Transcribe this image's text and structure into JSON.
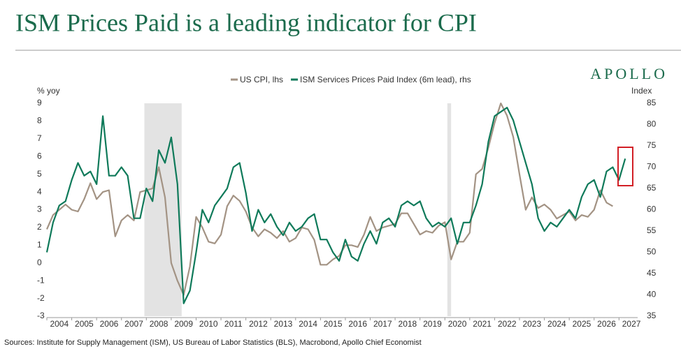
{
  "header": {
    "title": "ISM Prices Paid is a leading indicator for CPI",
    "brand": "APOLLO"
  },
  "chart_data": {
    "type": "line",
    "y_label": "% yoy",
    "y2_label": "Index",
    "source": "Sources: Institute for Supply Management (ISM), US Bureau of Labor Statistics (BLS), Macrobond, Apollo Chief Economist",
    "x": [
      2004,
      2004.25,
      2004.5,
      2004.75,
      2005,
      2005.25,
      2005.5,
      2005.75,
      2006,
      2006.25,
      2006.5,
      2006.75,
      2007,
      2007.25,
      2007.5,
      2007.75,
      2008,
      2008.25,
      2008.5,
      2008.75,
      2009,
      2009.25,
      2009.5,
      2009.75,
      2010,
      2010.25,
      2010.5,
      2010.75,
      2011,
      2011.25,
      2011.5,
      2011.75,
      2012,
      2012.25,
      2012.5,
      2012.75,
      2013,
      2013.25,
      2013.5,
      2013.75,
      2014,
      2014.25,
      2014.5,
      2014.75,
      2015,
      2015.25,
      2015.5,
      2015.75,
      2016,
      2016.25,
      2016.5,
      2016.75,
      2017,
      2017.25,
      2017.5,
      2017.75,
      2018,
      2018.25,
      2018.5,
      2018.75,
      2019,
      2019.25,
      2019.5,
      2019.75,
      2020,
      2020.25,
      2020.5,
      2020.75,
      2021,
      2021.25,
      2021.5,
      2021.75,
      2022,
      2022.25,
      2022.5,
      2022.75,
      2023,
      2023.25,
      2023.5,
      2023.75,
      2024,
      2024.25,
      2024.5,
      2024.75,
      2025,
      2025.25,
      2025.5,
      2025.75,
      2026,
      2026.25,
      2026.5,
      2026.75,
      2027,
      2027.25
    ],
    "series": [
      {
        "name": "US CPI, lhs",
        "color": "#a39384",
        "axis": "y",
        "values": [
          1.9,
          2.7,
          3.0,
          3.3,
          3.0,
          2.9,
          3.6,
          4.5,
          3.6,
          4.0,
          4.1,
          1.5,
          2.4,
          2.7,
          2.4,
          4.0,
          4.1,
          4.2,
          5.4,
          3.7,
          0.0,
          -1.0,
          -1.8,
          -0.2,
          2.6,
          2.0,
          1.2,
          1.1,
          1.6,
          3.2,
          3.8,
          3.5,
          2.9,
          2.0,
          1.5,
          1.9,
          1.7,
          1.4,
          1.8,
          1.2,
          1.4,
          2.0,
          1.9,
          1.3,
          -0.1,
          -0.1,
          0.2,
          0.4,
          1.0,
          1.0,
          0.9,
          1.6,
          2.6,
          1.8,
          2.0,
          2.1,
          2.2,
          2.8,
          2.8,
          2.2,
          1.6,
          1.8,
          1.7,
          2.1,
          2.3,
          0.2,
          1.2,
          1.2,
          1.7,
          5.0,
          5.3,
          6.5,
          7.9,
          9.0,
          8.3,
          7.1,
          5.0,
          3.0,
          3.7,
          3.1,
          3.3,
          3.0,
          2.5,
          2.7,
          2.9,
          2.4,
          2.7,
          2.6,
          3.0,
          4.1,
          3.4,
          3.2,
          null,
          null
        ]
      },
      {
        "name": "ISM Services Prices Paid Index (6m lead), rhs",
        "color": "#0f7a5a",
        "axis": "y2",
        "values": [
          50,
          57,
          61,
          62,
          67,
          71,
          68,
          69,
          66,
          82,
          68,
          68,
          70,
          68,
          58,
          58,
          65,
          62,
          74,
          71,
          77,
          66,
          38,
          41,
          50,
          60,
          57,
          61,
          63,
          65,
          70,
          71,
          64,
          55,
          60,
          57,
          59,
          56,
          54,
          57,
          55,
          56,
          58,
          59,
          53,
          53,
          50,
          48,
          53,
          49,
          48,
          52,
          55,
          52,
          57,
          58,
          56,
          61,
          62,
          61,
          62,
          58,
          56,
          57,
          56,
          58,
          52,
          57,
          57,
          61,
          66,
          76,
          82,
          83,
          84,
          81,
          76,
          71,
          66,
          58,
          55,
          57,
          56,
          58,
          60,
          58,
          63,
          66,
          67,
          63,
          69,
          70,
          67,
          72
        ]
      }
    ],
    "xlim": [
      2004,
      2027.75
    ],
    "xticks": [
      {
        "value": 2004.5,
        "label": "2004"
      },
      {
        "value": 2005.5,
        "label": "2005"
      },
      {
        "value": 2006.5,
        "label": "2006"
      },
      {
        "value": 2007.5,
        "label": "2007"
      },
      {
        "value": 2008.5,
        "label": "2008"
      },
      {
        "value": 2009.5,
        "label": "2009"
      },
      {
        "value": 2010.5,
        "label": "2010"
      },
      {
        "value": 2011.5,
        "label": "2011"
      },
      {
        "value": 2012.5,
        "label": "2012"
      },
      {
        "value": 2013.5,
        "label": "2013"
      },
      {
        "value": 2014.5,
        "label": "2014"
      },
      {
        "value": 2015.5,
        "label": "2015"
      },
      {
        "value": 2016.5,
        "label": "2016"
      },
      {
        "value": 2017.5,
        "label": "2017"
      },
      {
        "value": 2018.5,
        "label": "2018"
      },
      {
        "value": 2019.5,
        "label": "2019"
      },
      {
        "value": 2020.5,
        "label": "2020"
      },
      {
        "value": 2021.5,
        "label": "2021"
      },
      {
        "value": 2022.5,
        "label": "2022"
      },
      {
        "value": 2023.5,
        "label": "2023"
      },
      {
        "value": 2024.5,
        "label": "2024"
      },
      {
        "value": 2025.5,
        "label": "2025"
      },
      {
        "value": 2026.5,
        "label": "2026"
      },
      {
        "value": 2027.5,
        "label": "2027"
      }
    ],
    "ylim": [
      -3,
      9
    ],
    "yticks": [
      -3,
      -2,
      -1,
      0,
      1,
      2,
      3,
      4,
      5,
      6,
      7,
      8,
      9
    ],
    "y2lim": [
      35,
      85
    ],
    "y2ticks": [
      35,
      40,
      45,
      50,
      55,
      60,
      65,
      70,
      75,
      80,
      85
    ],
    "shaded_periods": [
      [
        2007.92,
        2009.42
      ],
      [
        2020.1,
        2020.25
      ]
    ],
    "shade_color": "#e3e3e3",
    "legend": "top"
  }
}
